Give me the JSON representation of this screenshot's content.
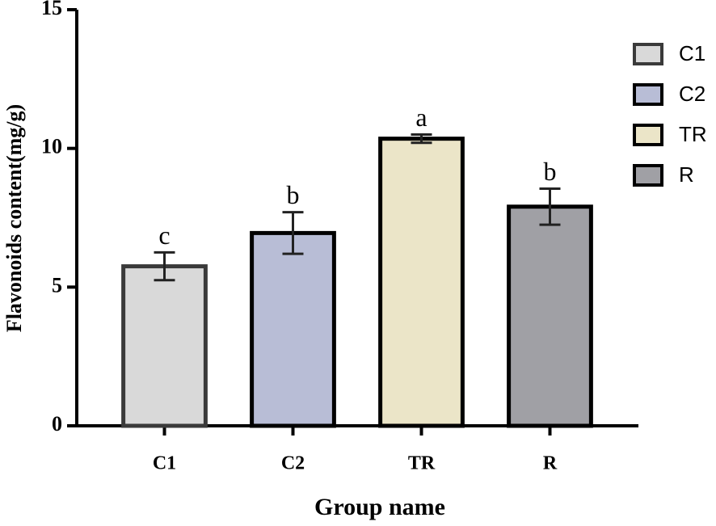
{
  "chart_data": {
    "type": "bar",
    "xlabel": "Group name",
    "ylabel": "Flavonoids content(mg/g)",
    "categories": [
      "C1",
      "C2",
      "TR",
      "R"
    ],
    "values": [
      5.75,
      6.95,
      10.35,
      7.9
    ],
    "errors": [
      0.5,
      0.75,
      0.15,
      0.65
    ],
    "significance": [
      "c",
      "b",
      "a",
      "b"
    ],
    "colors": [
      "#d9d9d9",
      "#b8bdd6",
      "#ebe5c8",
      "#a0a0a5"
    ],
    "ylim": [
      0,
      15
    ],
    "yticks": [
      0,
      5,
      10,
      15
    ],
    "grid": false,
    "legend": "right"
  }
}
